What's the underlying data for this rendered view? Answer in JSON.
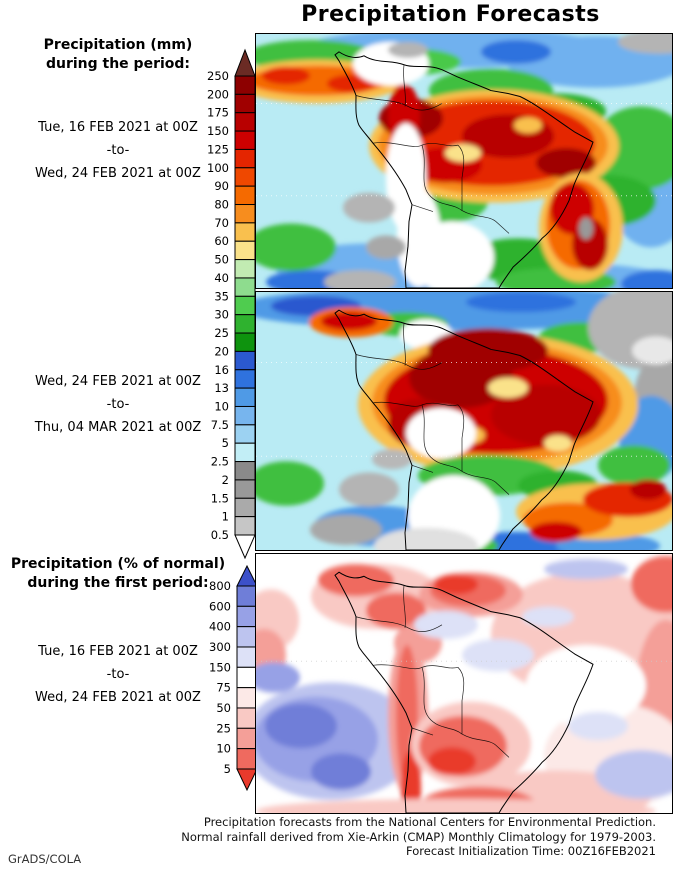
{
  "title": "Precipitation Forecasts",
  "watermark": "GrADS/COLA",
  "sections": [
    {
      "heading": [
        "Precipitation (mm)",
        "during the period:"
      ],
      "dates": [
        "Tue, 16 FEB 2021 at 00Z",
        "-to-",
        "Wed, 24 FEB 2021 at 00Z"
      ]
    },
    {
      "heading": [],
      "dates": [
        "Wed, 24 FEB 2021 at 00Z",
        "-to-",
        "Thu, 04 MAR 2021 at 00Z"
      ]
    },
    {
      "heading": [
        "Precipitation (% of normal)",
        "during the first period:"
      ],
      "dates": [
        "Tue, 16 FEB 2021 at 00Z",
        "-to-",
        "Wed, 24 FEB 2021 at 00Z"
      ]
    }
  ],
  "caption": [
    "Precipitation forecasts from the National Centers for Environmental Prediction.",
    "Normal rainfall derived from Xie-Arkin (CMAP) Monthly Climatology for 1979-2003.",
    "Forecast Initialization Time: 00Z16FEB2021"
  ],
  "colorbars": {
    "mm": {
      "units": "mm",
      "labels": [
        "250",
        "200",
        "175",
        "150",
        "125",
        "100",
        "90",
        "80",
        "70",
        "60",
        "50",
        "40",
        "35",
        "30",
        "25",
        "20",
        "16",
        "13",
        "10",
        "7.5",
        "5",
        "2.5",
        "2",
        "1.5",
        "1",
        "0.5"
      ],
      "cell_colors": [
        "#8d0000",
        "#a00000",
        "#b80000",
        "#cd0000",
        "#e42500",
        "#ef4800",
        "#f56a00",
        "#f78d1e",
        "#f9c04e",
        "#fae28a",
        "#c2ebb2",
        "#8edc8e",
        "#4fcc4f",
        "#2fb22f",
        "#0e930e",
        "#2b59cf",
        "#2f72de",
        "#4f9ae6",
        "#77b5ee",
        "#9cd2f2",
        "#c2eef6",
        "#8a8a8a",
        "#999999",
        "#aaaaaa",
        "#c6c6c6"
      ],
      "arrow_top": "#6b2b24",
      "arrow_bottom": "#ffffff"
    },
    "percent": {
      "units": "% of normal",
      "labels": [
        "800",
        "600",
        "400",
        "300",
        "150",
        "75",
        "50",
        "25",
        "10",
        "5"
      ],
      "cell_colors": [
        "#6f7ed8",
        "#97a1e6",
        "#bdc4ef",
        "#dde1f7",
        "#ffffff",
        "#fce9e7",
        "#f9c9c4",
        "#f49f98",
        "#ef6a5f"
      ],
      "arrow_top": "#3c50c9",
      "arrow_bottom": "#e93a2c"
    }
  },
  "maps": {
    "panel1": {
      "label": "Precipitation (mm) Tue 16 FEB 2021 00Z to Wed 24 FEB 2021 00Z",
      "bg": "#b9ebf4",
      "blobs": [
        [
          200,
          14,
          150,
          20,
          "#6fb1ef"
        ],
        [
          340,
          28,
          90,
          26,
          "#6fb1ef"
        ],
        [
          395,
          150,
          45,
          65,
          "#6fb1ef"
        ],
        [
          115,
          237,
          95,
          26,
          "#6fb1ef"
        ],
        [
          330,
          250,
          85,
          18,
          "#6fb1ef"
        ],
        [
          260,
          18,
          35,
          12,
          "#2f72de"
        ],
        [
          55,
          250,
          45,
          12,
          "#2f72de"
        ],
        [
          400,
          252,
          35,
          14,
          "#2f72de"
        ],
        [
          55,
          22,
          65,
          16,
          "#3fbf3f"
        ],
        [
          150,
          28,
          55,
          14,
          "#49c949"
        ],
        [
          235,
          57,
          62,
          22,
          "#3fbf3f"
        ],
        [
          302,
          78,
          48,
          18,
          "#2fb22f"
        ],
        [
          385,
          115,
          48,
          42,
          "#3fbf3f"
        ],
        [
          352,
          168,
          48,
          26,
          "#2fb22f"
        ],
        [
          35,
          215,
          45,
          24,
          "#3fbf3f"
        ],
        [
          192,
          168,
          40,
          22,
          "#3fbf3f"
        ],
        [
          262,
          228,
          52,
          22,
          "#2fb22f"
        ],
        [
          300,
          250,
          60,
          14,
          "#3fbf3f"
        ],
        [
          62,
          48,
          85,
          22,
          "#f9c04e"
        ],
        [
          62,
          47,
          70,
          15,
          "#f56a00"
        ],
        [
          30,
          42,
          24,
          9,
          "#e42500"
        ],
        [
          95,
          50,
          24,
          9,
          "#e42500"
        ],
        [
          238,
          113,
          125,
          57,
          "#f9c04e"
        ],
        [
          237,
          112,
          115,
          50,
          "#f78d1e"
        ],
        [
          236,
          110,
          103,
          43,
          "#e42500"
        ],
        [
          155,
          85,
          32,
          20,
          "#a00000"
        ],
        [
          252,
          103,
          46,
          22,
          "#b80000"
        ],
        [
          310,
          130,
          30,
          15,
          "#a00000"
        ],
        [
          190,
          132,
          36,
          18,
          "#cd0000"
        ],
        [
          148,
          82,
          16,
          32,
          "#cd0000"
        ],
        [
          207,
          120,
          18,
          9,
          "#fae28a"
        ],
        [
          272,
          92,
          14,
          8,
          "#f9c04e"
        ],
        [
          325,
          195,
          42,
          55,
          "#f9c04e"
        ],
        [
          322,
          192,
          32,
          45,
          "#f56a00"
        ],
        [
          316,
          176,
          22,
          26,
          "#cd0000"
        ],
        [
          334,
          212,
          18,
          26,
          "#b80000"
        ],
        [
          330,
          196,
          7,
          11,
          "#999999"
        ],
        [
          135,
          30,
          38,
          22,
          "#ffffff"
        ],
        [
          152,
          16,
          20,
          8,
          "#b4b4b4"
        ],
        [
          150,
          145,
          20,
          55,
          "#ffffff"
        ],
        [
          163,
          205,
          22,
          50,
          "#ffffff"
        ],
        [
          196,
          225,
          42,
          36,
          "#ffffff"
        ],
        [
          113,
          175,
          26,
          15,
          "#b4b4b4"
        ],
        [
          130,
          215,
          20,
          12,
          "#a8a8a8"
        ],
        [
          104,
          250,
          36,
          12,
          "#b4b4b4"
        ],
        [
          404,
          8,
          42,
          12,
          "#b4b4b4"
        ]
      ]
    },
    "panel2": {
      "label": "Precipitation (mm) Wed 24 FEB 2021 00Z to Thu 04 MAR 2021 00Z",
      "bg": "#b9ebf4",
      "blobs": [
        [
          200,
          16,
          220,
          22,
          "#4f9ae6"
        ],
        [
          60,
          14,
          45,
          10,
          "#2b59cf"
        ],
        [
          265,
          10,
          55,
          10,
          "#2f72de"
        ],
        [
          150,
          32,
          42,
          12,
          "#3fbf3f"
        ],
        [
          325,
          45,
          42,
          15,
          "#3fbf3f"
        ],
        [
          390,
          35,
          58,
          42,
          "#b4b4b4"
        ],
        [
          410,
          105,
          32,
          45,
          "#a8a8a8"
        ],
        [
          400,
          58,
          24,
          14,
          "#e8e8e8"
        ],
        [
          170,
          42,
          26,
          15,
          "#ffffff"
        ],
        [
          95,
          30,
          42,
          15,
          "#f56a00"
        ],
        [
          93,
          29,
          28,
          9,
          "#cd0000"
        ],
        [
          395,
          145,
          32,
          42,
          "#4f9ae6"
        ],
        [
          378,
          172,
          36,
          20,
          "#3fbf3f"
        ],
        [
          30,
          190,
          38,
          22,
          "#3fbf3f"
        ],
        [
          120,
          232,
          62,
          20,
          "#4f9ae6"
        ],
        [
          260,
          252,
          62,
          14,
          "#2f72de"
        ],
        [
          352,
          252,
          52,
          12,
          "#4f9ae6"
        ],
        [
          182,
          252,
          60,
          14,
          "#3fbf3f"
        ],
        [
          242,
          112,
          140,
          70,
          "#f9c04e"
        ],
        [
          241,
          110,
          125,
          60,
          "#f78d1e"
        ],
        [
          240,
          108,
          112,
          52,
          "#cd0000"
        ],
        [
          205,
          85,
          52,
          30,
          "#a00000"
        ],
        [
          290,
          122,
          55,
          30,
          "#b80000"
        ],
        [
          162,
          130,
          30,
          24,
          "#b80000"
        ],
        [
          232,
          58,
          60,
          22,
          "#a00000"
        ],
        [
          252,
          95,
          20,
          10,
          "#fae28a"
        ],
        [
          212,
          142,
          17,
          9,
          "#f9c04e"
        ],
        [
          302,
          150,
          14,
          8,
          "#fae28a"
        ],
        [
          232,
          182,
          70,
          20,
          "#3fbf3f"
        ],
        [
          302,
          192,
          40,
          15,
          "#2fb22f"
        ],
        [
          340,
          218,
          80,
          28,
          "#f9c04e"
        ],
        [
          312,
          226,
          45,
          17,
          "#f56a00"
        ],
        [
          372,
          206,
          45,
          17,
          "#e42500"
        ],
        [
          392,
          196,
          18,
          10,
          "#b80000"
        ],
        [
          300,
          238,
          26,
          10,
          "#cd0000"
        ],
        [
          185,
          140,
          35,
          25,
          "#ffffff"
        ],
        [
          198,
          222,
          46,
          40,
          "#ffffff"
        ],
        [
          170,
          252,
          52,
          18,
          "#e0e0e0"
        ],
        [
          113,
          196,
          30,
          17,
          "#b4b4b4"
        ],
        [
          90,
          236,
          36,
          15,
          "#a8a8a8"
        ],
        [
          136,
          166,
          20,
          10,
          "#b8b8b8"
        ]
      ]
    },
    "panel3": {
      "label": "Precipitation (% of normal) Tue 16 FEB 2021 00Z to Wed 24 FEB 2021 00Z",
      "bg": "#ffffff",
      "blobs": [
        [
          330,
          80,
          95,
          62,
          "#f9c9c4"
        ],
        [
          410,
          30,
          35,
          28,
          "#ef6a5f"
        ],
        [
          410,
          150,
          32,
          85,
          "#f49f98"
        ],
        [
          360,
          200,
          72,
          52,
          "#fce9e7"
        ],
        [
          300,
          240,
          95,
          26,
          "#f9c9c4"
        ],
        [
          330,
          130,
          60,
          40,
          "#ffffff"
        ],
        [
          120,
          42,
          65,
          32,
          "#f9c9c4"
        ],
        [
          100,
          26,
          38,
          16,
          "#ef6a5f"
        ],
        [
          140,
          56,
          30,
          18,
          "#ef6a5f"
        ],
        [
          162,
          88,
          24,
          20,
          "#f49f98"
        ],
        [
          215,
          40,
          52,
          22,
          "#f49f98"
        ],
        [
          212,
          36,
          38,
          16,
          "#ef6a5f"
        ],
        [
          200,
          30,
          22,
          10,
          "#e93a2c"
        ],
        [
          190,
          70,
          32,
          14,
          "#dde1f7"
        ],
        [
          242,
          100,
          36,
          16,
          "#dde1f7"
        ],
        [
          330,
          15,
          42,
          10,
          "#bdc4ef"
        ],
        [
          292,
          62,
          26,
          10,
          "#dde1f7"
        ],
        [
          342,
          170,
          30,
          14,
          "#dde1f7"
        ],
        [
          385,
          218,
          46,
          24,
          "#bdc4ef"
        ],
        [
          15,
          65,
          28,
          30,
          "#f9c9c4"
        ],
        [
          8,
          100,
          22,
          26,
          "#f49f98"
        ],
        [
          75,
          185,
          88,
          58,
          "#bdc4ef"
        ],
        [
          60,
          183,
          62,
          42,
          "#97a1e6"
        ],
        [
          45,
          170,
          36,
          22,
          "#6f7ed8"
        ],
        [
          85,
          215,
          30,
          18,
          "#6f7ed8"
        ],
        [
          18,
          122,
          26,
          15,
          "#97a1e6"
        ],
        [
          152,
          160,
          20,
          80,
          "#f49f98"
        ],
        [
          151,
          160,
          11,
          70,
          "#ef6a5f"
        ],
        [
          155,
          232,
          10,
          38,
          "#e93a2c"
        ],
        [
          215,
          188,
          60,
          42,
          "#f9c9c4"
        ],
        [
          207,
          190,
          44,
          30,
          "#ef6a5f"
        ],
        [
          196,
          205,
          24,
          14,
          "#e93a2c"
        ],
        [
          222,
          250,
          60,
          20,
          "#ef6a5f"
        ],
        [
          200,
          254,
          200,
          12,
          "#f9c9c4"
        ]
      ]
    }
  }
}
